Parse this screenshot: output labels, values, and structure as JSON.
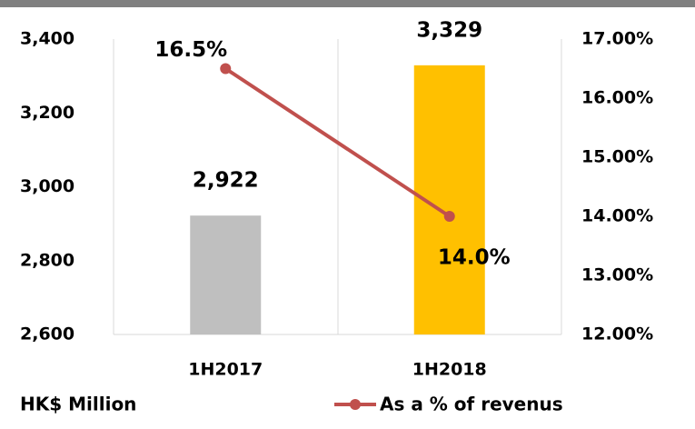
{
  "chart_data": {
    "type": "bar",
    "categories": [
      "1H2017",
      "1H2018"
    ],
    "values": [
      2922,
      3329
    ],
    "value_labels": [
      "2,922",
      "3,329"
    ],
    "colors": [
      "#bfbfbf",
      "#ffc000"
    ],
    "ylim": [
      2600,
      3400
    ],
    "yticks": [
      {
        "value": 2600,
        "label": "2,600"
      },
      {
        "value": 2800,
        "label": "2,800"
      },
      {
        "value": 3000,
        "label": "3,000"
      },
      {
        "value": 3200,
        "label": "3,200"
      },
      {
        "value": 3400,
        "label": "3,400"
      }
    ],
    "y2lim": [
      12,
      17
    ],
    "y2ticks": [
      {
        "value": 12,
        "label": "12.00%"
      },
      {
        "value": 13,
        "label": "13.00%"
      },
      {
        "value": 14,
        "label": "14.00%"
      },
      {
        "value": 15,
        "label": "15.00%"
      },
      {
        "value": 16,
        "label": "16.00%"
      },
      {
        "value": 17,
        "label": "17.00%"
      }
    ],
    "series": [
      {
        "name": "As a % of revenus",
        "color": "#c0504d",
        "axis": "y2",
        "type": "line",
        "values": [
          16.5,
          14.0
        ],
        "value_labels": [
          "16.5%",
          "14.0%"
        ]
      }
    ],
    "annotation": "HK$ Million"
  }
}
